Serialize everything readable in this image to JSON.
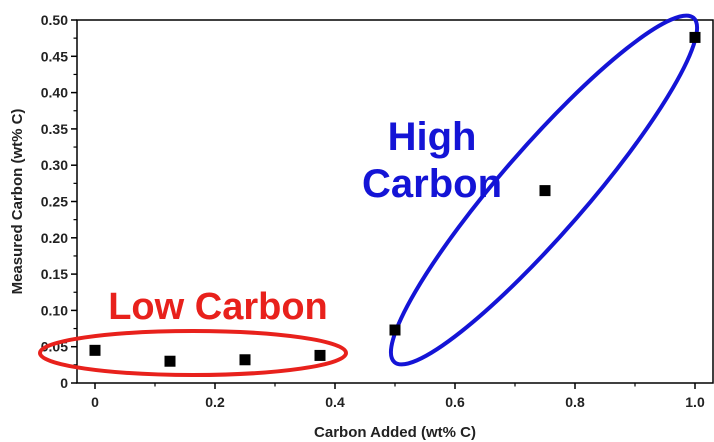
{
  "chart_data": {
    "type": "scatter",
    "xlabel": "Carbon Added (wt% C)",
    "ylabel": "Measured Carbon (wt% C)",
    "xlim": [
      -0.03,
      1.03
    ],
    "ylim": [
      0,
      0.5
    ],
    "xticks": [
      "0",
      "0.2",
      "0.4",
      "0.6",
      "0.8",
      "1.0"
    ],
    "yticks": [
      "0",
      "0.05",
      "0.10",
      "0.15",
      "0.20",
      "0.25",
      "0.30",
      "0.35",
      "0.40",
      "0.45",
      "0.50"
    ],
    "grid": false,
    "series": [
      {
        "marker": "square",
        "color": "#000000",
        "points": [
          {
            "x": 0.0,
            "y": 0.045
          },
          {
            "x": 0.125,
            "y": 0.03
          },
          {
            "x": 0.25,
            "y": 0.032
          },
          {
            "x": 0.375,
            "y": 0.038
          },
          {
            "x": 0.5,
            "y": 0.073
          },
          {
            "x": 0.75,
            "y": 0.265
          },
          {
            "x": 1.0,
            "y": 0.476
          }
        ]
      }
    ],
    "annotations": [
      {
        "text": "Low Carbon",
        "color": "#e8211c"
      },
      {
        "text": "High\nCarbon",
        "color": "#1414d6"
      }
    ]
  }
}
